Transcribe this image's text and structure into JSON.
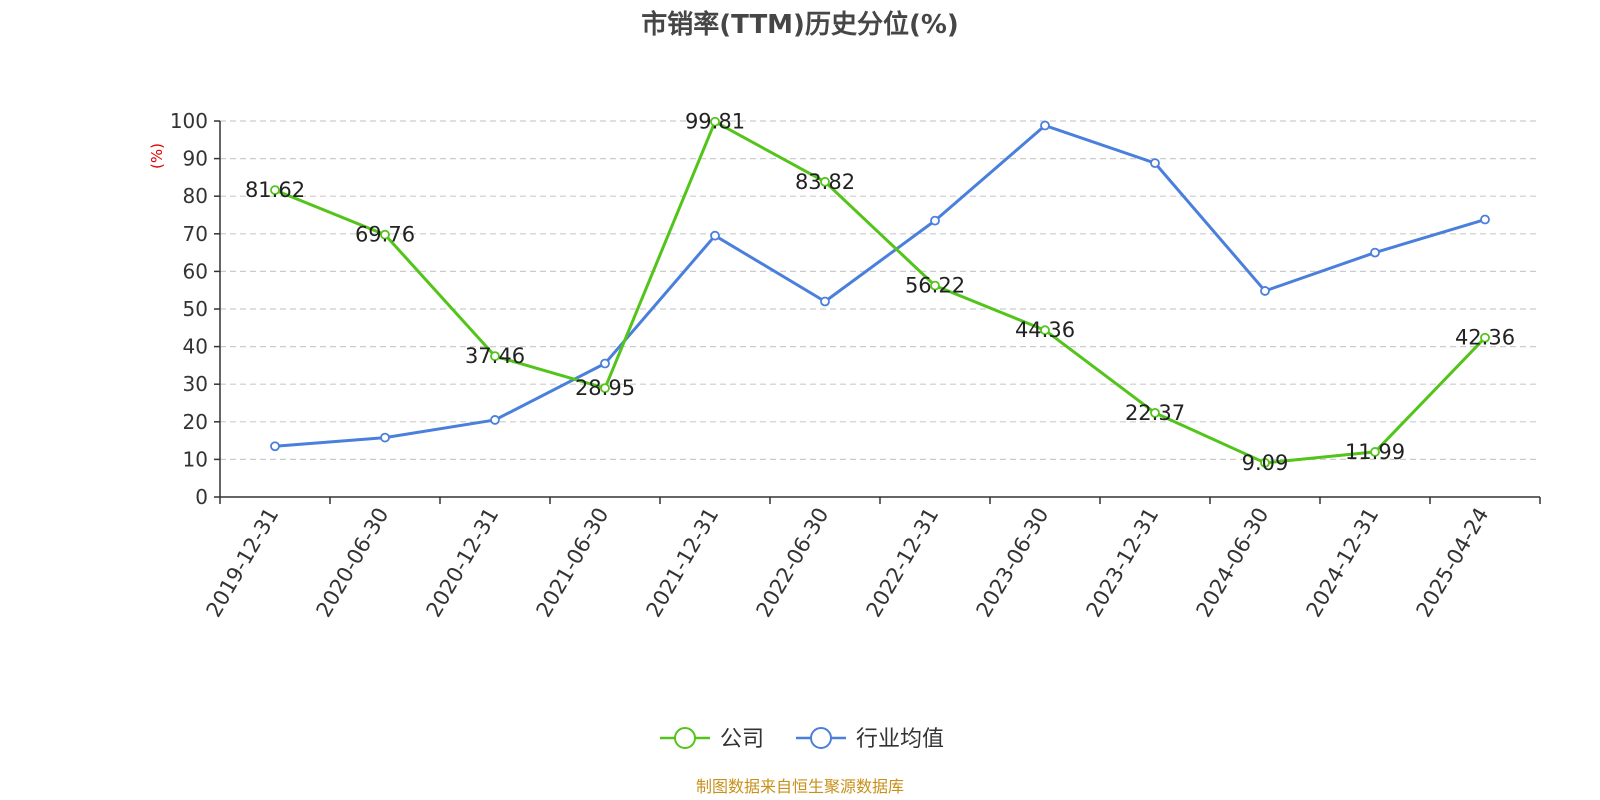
{
  "chart_data": {
    "type": "line",
    "title": "市销率(TTM)历史分位(%)",
    "ylabel": "(%)",
    "xlabel": "",
    "ylim": [
      0,
      100
    ],
    "yticks": [
      0,
      10,
      20,
      30,
      40,
      50,
      60,
      70,
      80,
      90,
      100
    ],
    "grid": true,
    "legend_position": "bottom-center",
    "categories": [
      "2019-12-31",
      "2020-06-30",
      "2020-12-31",
      "2021-06-30",
      "2021-12-31",
      "2022-06-30",
      "2022-12-31",
      "2023-06-30",
      "2023-12-31",
      "2024-06-30",
      "2024-12-31",
      "2025-04-24"
    ],
    "series": [
      {
        "name": "公司",
        "color": "#52c41a",
        "values": [
          81.62,
          69.76,
          37.46,
          28.95,
          99.81,
          83.82,
          56.22,
          44.36,
          22.37,
          9.09,
          11.99,
          42.36
        ],
        "labels": [
          "81.62",
          "69.76",
          "37.46",
          "28.95",
          "99.81",
          "83.82",
          "56.22",
          "44.36",
          "22.37",
          "9.09",
          "11.99",
          "42.36"
        ]
      },
      {
        "name": "行业均值",
        "color": "#4a7fdc",
        "values": [
          13.5,
          15.8,
          20.5,
          35.5,
          69.5,
          52.0,
          73.5,
          98.8,
          88.8,
          54.8,
          65.0,
          73.8
        ]
      }
    ],
    "source": "制图数据来自恒生聚源数据库"
  }
}
